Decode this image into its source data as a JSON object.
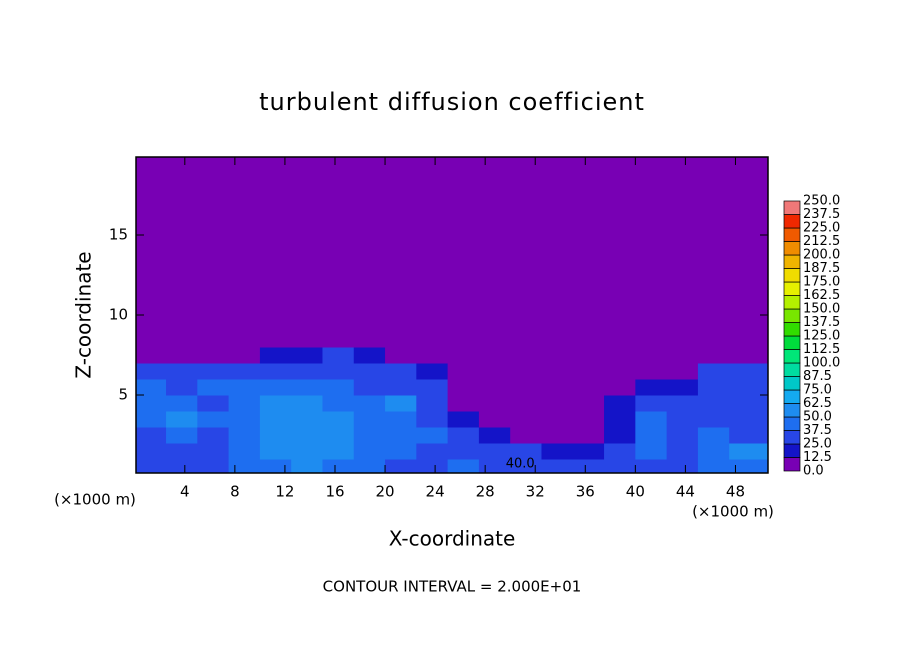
{
  "chart_data": {
    "type": "contour",
    "title": "turbulent diffusion coefficient",
    "xlabel": "X-coordinate",
    "ylabel": "Z-coordinate",
    "x_unit": "(×1000 m)",
    "y_unit": "(×1000 m)",
    "footer": "CONTOUR INTERVAL = 2.000E+01",
    "annotation": {
      "text": "40.0",
      "x": 30.8,
      "y": 0.7
    },
    "xlim": [
      0.1,
      50.6
    ],
    "ylim": [
      0.125,
      19.875
    ],
    "xticks": [
      4,
      8,
      12,
      16,
      20,
      24,
      28,
      32,
      36,
      40,
      44,
      48
    ],
    "yticks": [
      5,
      10,
      15
    ],
    "x_edges": [
      0.1,
      2.5,
      5,
      7.5,
      10,
      12.5,
      15,
      17.5,
      20,
      22.5,
      25,
      27.5,
      30,
      32.5,
      35,
      37.5,
      40,
      42.5,
      45,
      47.5,
      50.6
    ],
    "z_edges": [
      0.125,
      1,
      2,
      3,
      4,
      5,
      6,
      7,
      8,
      9,
      19.875
    ],
    "values": [
      [
        30,
        35,
        30,
        40,
        45,
        50,
        45,
        40,
        35,
        35,
        40,
        35,
        30,
        30,
        30,
        25,
        30,
        35,
        40,
        40
      ],
      [
        35,
        30,
        25,
        40,
        50,
        55,
        50,
        45,
        40,
        35,
        35,
        30,
        25,
        20,
        15,
        25,
        40,
        35,
        45,
        50
      ],
      [
        25,
        40,
        35,
        45,
        55,
        60,
        55,
        40,
        45,
        40,
        30,
        15,
        10,
        5,
        10,
        20,
        40,
        35,
        40,
        35
      ],
      [
        40,
        50,
        40,
        40,
        55,
        55,
        50,
        40,
        45,
        35,
        20,
        5,
        5,
        5,
        10,
        20,
        40,
        30,
        35,
        30
      ],
      [
        45,
        45,
        35,
        40,
        50,
        55,
        45,
        40,
        50,
        30,
        10,
        5,
        5,
        5,
        5,
        15,
        30,
        30,
        30,
        30
      ],
      [
        40,
        35,
        45,
        40,
        45,
        45,
        40,
        35,
        35,
        25,
        10,
        5,
        0,
        0,
        5,
        10,
        15,
        20,
        30,
        35
      ],
      [
        30,
        25,
        30,
        30,
        35,
        35,
        30,
        30,
        25,
        15,
        5,
        0,
        0,
        0,
        0,
        5,
        5,
        10,
        25,
        30
      ],
      [
        5,
        5,
        5,
        5,
        15,
        20,
        25,
        15,
        5,
        0,
        0,
        0,
        0,
        0,
        0,
        0,
        0,
        0,
        5,
        0
      ],
      [
        0,
        0,
        0,
        0,
        5,
        5,
        0,
        0,
        0,
        0,
        0,
        0,
        0,
        0,
        0,
        0,
        0,
        0,
        0,
        0
      ],
      [
        0,
        0,
        0,
        0,
        0,
        0,
        0,
        0,
        0,
        0,
        0,
        0,
        0,
        0,
        0,
        0,
        0,
        0,
        0,
        0
      ]
    ],
    "colorbar": {
      "levels": [
        {
          "value": 0,
          "label": "0.0"
        },
        {
          "value": 12.5,
          "label": "12.5"
        },
        {
          "value": 25,
          "label": "25.0"
        },
        {
          "value": 37.5,
          "label": "37.5"
        },
        {
          "value": 50,
          "label": "50.0"
        },
        {
          "value": 62.5,
          "label": "62.5"
        },
        {
          "value": 75,
          "label": "75.0"
        },
        {
          "value": 87.5,
          "label": "87.5"
        },
        {
          "value": 100,
          "label": "100.0"
        },
        {
          "value": 112.5,
          "label": "112.5"
        },
        {
          "value": 125,
          "label": "125.0"
        },
        {
          "value": 137.5,
          "label": "137.5"
        },
        {
          "value": 150,
          "label": "150.0"
        },
        {
          "value": 162.5,
          "label": "162.5"
        },
        {
          "value": 175,
          "label": "175.0"
        },
        {
          "value": 187.5,
          "label": "187.5"
        },
        {
          "value": 200,
          "label": "200.0"
        },
        {
          "value": 212.5,
          "label": "212.5"
        },
        {
          "value": 225,
          "label": "225.0"
        },
        {
          "value": 237.5,
          "label": "237.5"
        },
        {
          "value": 250,
          "label": "250.0"
        }
      ],
      "colors": [
        "#7800b4",
        "#1414c8",
        "#2846e6",
        "#1e6ef0",
        "#1e8cf0",
        "#14aaf0",
        "#00c8c8",
        "#00dca0",
        "#00e678",
        "#00dc3c",
        "#32dc00",
        "#78e600",
        "#b4f000",
        "#e6f000",
        "#f0dc00",
        "#f0b400",
        "#f08c00",
        "#f05a00",
        "#f02800",
        "#f07878"
      ]
    }
  }
}
